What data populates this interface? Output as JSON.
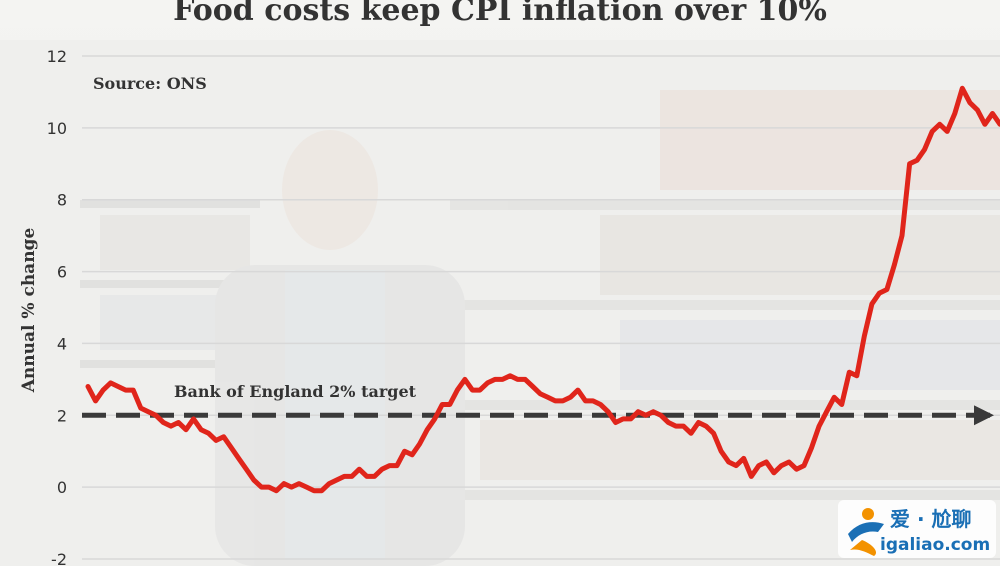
{
  "colors": {
    "series": "#e0251b",
    "target": "#3a3a3a",
    "grid": "#d8d8d8",
    "text": "#333333",
    "watermark_blue": "#1a6fb5",
    "watermark_orange": "#f39200"
  },
  "chart_data": {
    "type": "line",
    "title": "Food costs keep CPI inflation over 10%",
    "ylabel": "Annual % change",
    "xlabel": "",
    "ylim": [
      -2,
      12
    ],
    "yticks": [
      -2,
      0,
      2,
      4,
      6,
      8,
      10,
      12
    ],
    "grid": true,
    "x_labels_shown": false,
    "source": "Source: ONS",
    "target_line": {
      "label": "Bank of England 2% target",
      "value": 2
    },
    "series": [
      {
        "values": [
          2.8,
          2.4,
          2.7,
          2.9,
          2.8,
          2.7,
          2.7,
          2.2,
          2.1,
          2.0,
          1.8,
          1.7,
          1.8,
          1.6,
          1.9,
          1.6,
          1.5,
          1.3,
          1.4,
          1.1,
          0.8,
          0.5,
          0.2,
          0.0,
          0.0,
          -0.1,
          0.1,
          0.0,
          0.1,
          0.0,
          -0.1,
          -0.1,
          0.1,
          0.2,
          0.3,
          0.3,
          0.5,
          0.3,
          0.3,
          0.5,
          0.6,
          0.6,
          1.0,
          0.9,
          1.2,
          1.6,
          1.9,
          2.3,
          2.3,
          2.7,
          3.0,
          2.7,
          2.7,
          2.9,
          3.0,
          3.0,
          3.1,
          3.0,
          3.0,
          2.8,
          2.6,
          2.5,
          2.4,
          2.4,
          2.5,
          2.7,
          2.4,
          2.4,
          2.3,
          2.1,
          1.8,
          1.9,
          1.9,
          2.1,
          2.0,
          2.1,
          2.0,
          1.8,
          1.7,
          1.7,
          1.5,
          1.8,
          1.7,
          1.5,
          1.0,
          0.7,
          0.6,
          0.8,
          0.3,
          0.6,
          0.7,
          0.4,
          0.6,
          0.7,
          0.5,
          0.6,
          1.1,
          1.7,
          2.1,
          2.5,
          2.3,
          3.2,
          3.1,
          4.2,
          5.1,
          5.4,
          5.5,
          6.2,
          7.0,
          9.0,
          9.1,
          9.4,
          9.9,
          10.1,
          9.9,
          10.4,
          11.1,
          10.7,
          10.5,
          10.1,
          10.4,
          10.1
        ]
      }
    ]
  },
  "watermark": {
    "line1": "爱 · 尬聊",
    "line2": "igaliao.com"
  }
}
